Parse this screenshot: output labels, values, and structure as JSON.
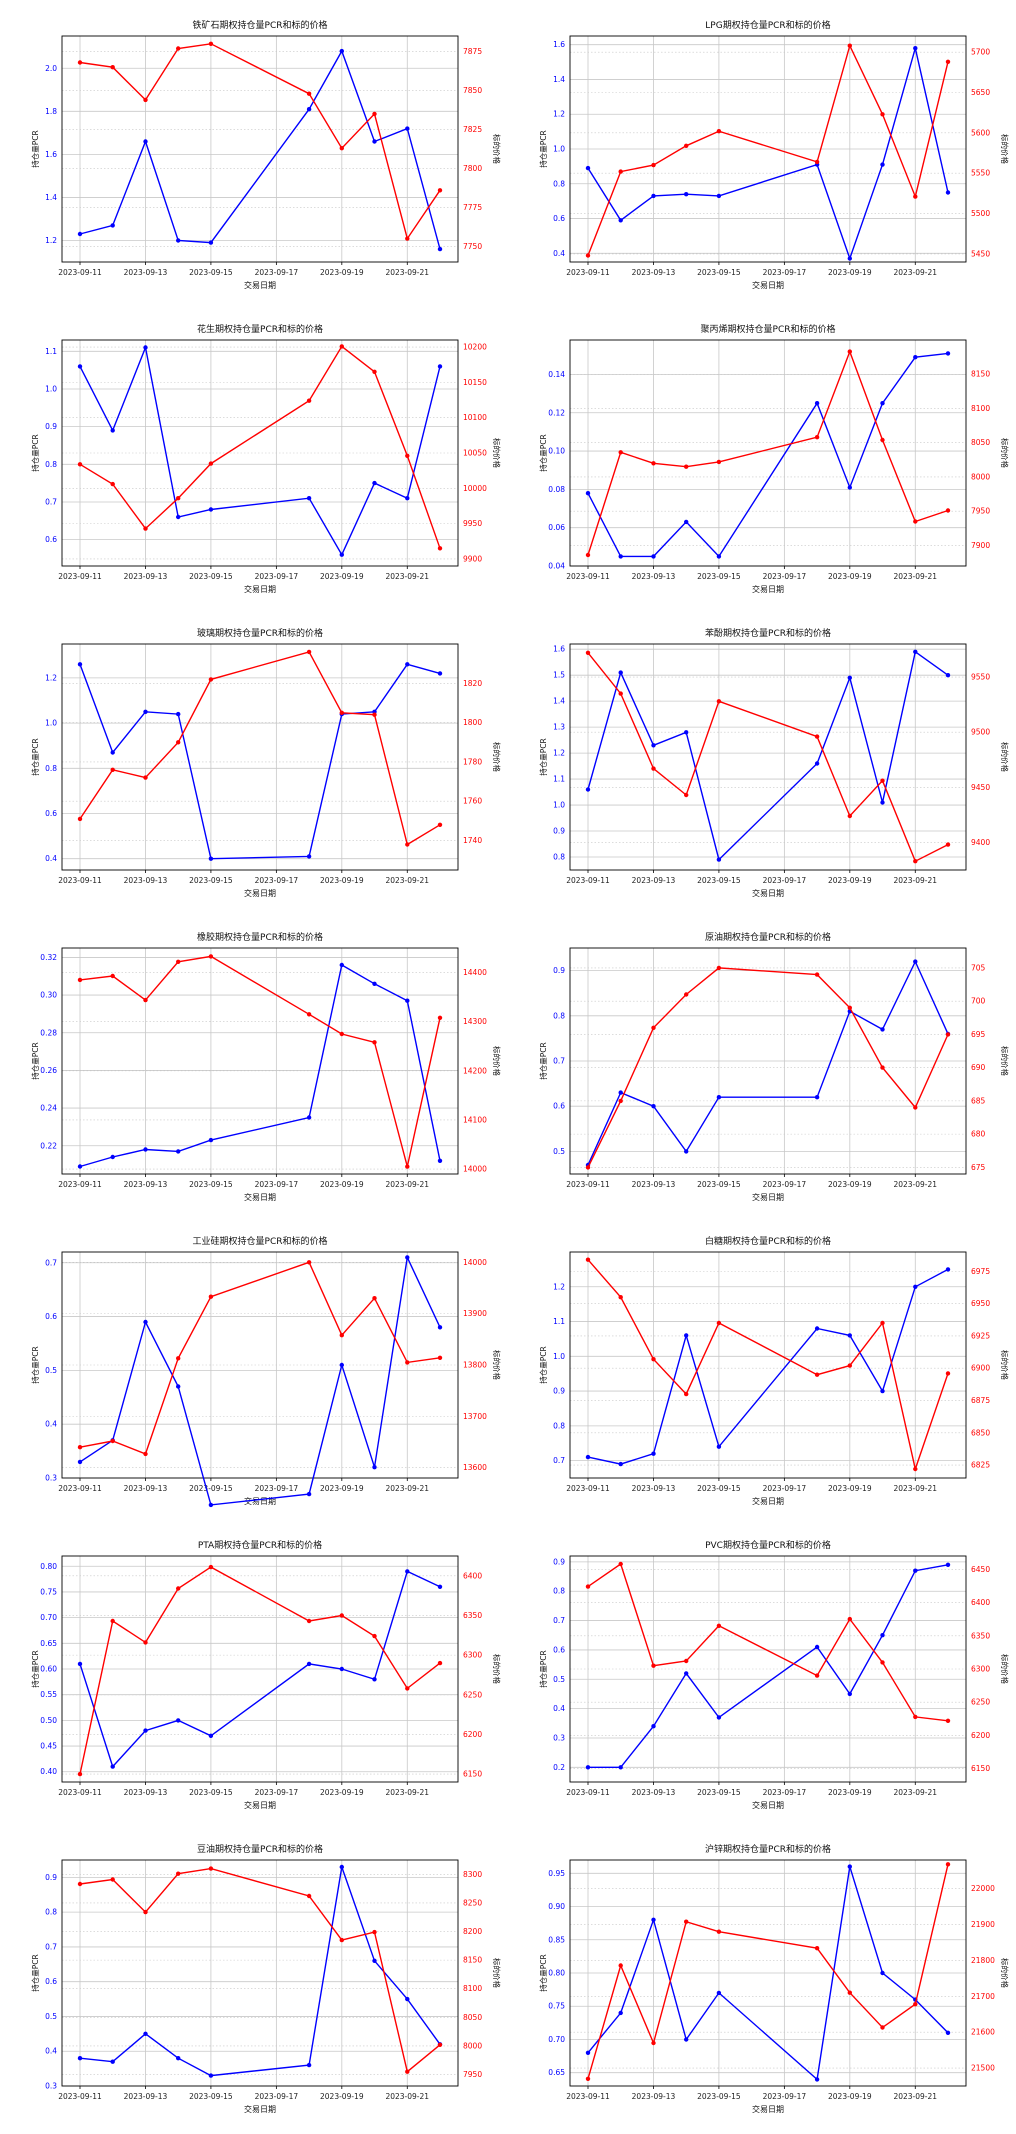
{
  "colors": {
    "pcr": "#0000ff",
    "price": "#ff0000",
    "grid": "#c8c8c8",
    "axis": "#000000"
  },
  "shared": {
    "dates": [
      "2023-09-11",
      "2023-09-12",
      "2023-09-13",
      "2023-09-14",
      "2023-09-15",
      "2023-09-18",
      "2023-09-19",
      "2023-09-20",
      "2023-09-21",
      "2023-09-22"
    ],
    "xticks": [
      "2023-09-11",
      "2023-09-13",
      "2023-09-15",
      "2023-09-17",
      "2023-09-19",
      "2023-09-21"
    ],
    "xlabel": "交易日期"
  },
  "chart_data": [
    {
      "type": "line",
      "title": "铁矿石期权持仓量PCR和标的价格",
      "ylabel": "持仓量PCR",
      "y2label": "标的价格",
      "x": [
        "2023-09-11",
        "2023-09-12",
        "2023-09-13",
        "2023-09-14",
        "2023-09-15",
        "2023-09-18",
        "2023-09-19",
        "2023-09-20",
        "2023-09-21",
        "2023-09-22"
      ],
      "ylim": [
        1.1,
        2.15
      ],
      "yticks": [
        "1.2",
        "1.4",
        "1.6",
        "1.8",
        "2.0"
      ],
      "y2lim": [
        7740,
        7885
      ],
      "y2ticks": [
        "7750",
        "7775",
        "7800",
        "7825",
        "7850",
        "7875"
      ],
      "series": [
        {
          "axis": "left",
          "values": [
            1.23,
            1.27,
            1.66,
            1.2,
            1.19,
            1.81,
            2.08,
            1.66,
            1.72,
            1.16
          ]
        },
        {
          "axis": "right",
          "values": [
            7868,
            7865,
            7844,
            7877,
            7880,
            7848,
            7813,
            7835,
            7755,
            7786
          ]
        }
      ]
    },
    {
      "type": "line",
      "title": "LPG期权持仓量PCR和标的价格",
      "ylabel": "持仓量PCR",
      "y2label": "标的价格",
      "x": [
        "2023-09-11",
        "2023-09-12",
        "2023-09-13",
        "2023-09-14",
        "2023-09-15",
        "2023-09-18",
        "2023-09-19",
        "2023-09-20",
        "2023-09-21",
        "2023-09-22"
      ],
      "ylim": [
        0.35,
        1.65
      ],
      "yticks": [
        "0.4",
        "0.6",
        "0.8",
        "1.0",
        "1.2",
        "1.4",
        "1.6"
      ],
      "y2lim": [
        5440,
        5720
      ],
      "y2ticks": [
        "5450",
        "5500",
        "5550",
        "5600",
        "5650",
        "5700"
      ],
      "series": [
        {
          "axis": "left",
          "values": [
            0.89,
            0.59,
            0.73,
            0.74,
            0.73,
            0.91,
            0.37,
            0.91,
            1.58,
            0.75
          ]
        },
        {
          "axis": "right",
          "values": [
            5448,
            5552,
            5560,
            5584,
            5602,
            5564,
            5708,
            5623,
            5521,
            5688
          ]
        }
      ]
    },
    {
      "type": "line",
      "title": "花生期权持仓量PCR和标的价格",
      "ylabel": "持仓量PCR",
      "y2label": "标的价格",
      "x": [
        "2023-09-11",
        "2023-09-12",
        "2023-09-13",
        "2023-09-14",
        "2023-09-15",
        "2023-09-18",
        "2023-09-19",
        "2023-09-20",
        "2023-09-21",
        "2023-09-22"
      ],
      "ylim": [
        0.53,
        1.13
      ],
      "yticks": [
        "0.6",
        "0.7",
        "0.8",
        "0.9",
        "1.0",
        "1.1"
      ],
      "y2lim": [
        9890,
        10210
      ],
      "y2ticks": [
        "9900",
        "9950",
        "10000",
        "10050",
        "10100",
        "10150",
        "10200"
      ],
      "series": [
        {
          "axis": "left",
          "values": [
            1.06,
            0.89,
            1.11,
            0.66,
            0.68,
            0.71,
            0.56,
            0.75,
            0.71,
            1.06
          ]
        },
        {
          "axis": "right",
          "values": [
            10034,
            10006,
            9943,
            9986,
            10035,
            10124,
            10201,
            10165,
            10046,
            9915
          ]
        }
      ]
    },
    {
      "type": "line",
      "title": "聚丙烯期权持仓量PCR和标的价格",
      "ylabel": "持仓量PCR",
      "y2label": "标的价格",
      "x": [
        "2023-09-11",
        "2023-09-12",
        "2023-09-13",
        "2023-09-14",
        "2023-09-15",
        "2023-09-18",
        "2023-09-19",
        "2023-09-20",
        "2023-09-21",
        "2023-09-22"
      ],
      "ylim": [
        0.04,
        0.158
      ],
      "yticks": [
        "0.04",
        "0.06",
        "0.08",
        "0.10",
        "0.12",
        "0.14"
      ],
      "y2lim": [
        7870,
        8200
      ],
      "y2ticks": [
        "7900",
        "7950",
        "8000",
        "8050",
        "8100",
        "8150"
      ],
      "series": [
        {
          "axis": "left",
          "values": [
            0.078,
            0.045,
            0.045,
            0.063,
            0.045,
            0.125,
            0.081,
            0.125,
            0.149,
            0.151
          ]
        },
        {
          "axis": "right",
          "values": [
            7886,
            8036,
            8020,
            8015,
            8022,
            8058,
            8183,
            8054,
            7935,
            7951
          ]
        }
      ]
    },
    {
      "type": "line",
      "title": "玻璃期权持仓量PCR和标的价格",
      "ylabel": "持仓量PCR",
      "y2label": "标的价格",
      "x": [
        "2023-09-11",
        "2023-09-12",
        "2023-09-13",
        "2023-09-14",
        "2023-09-15",
        "2023-09-18",
        "2023-09-19",
        "2023-09-20",
        "2023-09-21",
        "2023-09-22"
      ],
      "ylim": [
        0.35,
        1.35
      ],
      "yticks": [
        "0.4",
        "0.6",
        "0.8",
        "1.0",
        "1.2"
      ],
      "y2lim": [
        1725,
        1840
      ],
      "y2ticks": [
        "1740",
        "1760",
        "1780",
        "1800",
        "1820"
      ],
      "series": [
        {
          "axis": "left",
          "values": [
            1.26,
            0.87,
            1.05,
            1.04,
            0.4,
            0.41,
            1.04,
            1.05,
            1.26,
            1.22
          ]
        },
        {
          "axis": "right",
          "values": [
            1751,
            1776,
            1772,
            1790,
            1822,
            1836,
            1805,
            1804,
            1738,
            1748
          ]
        }
      ]
    },
    {
      "type": "line",
      "title": "苯酚期权持仓量PCR和标的价格",
      "ylabel": "持仓量PCR",
      "y2label": "标的价格",
      "x": [
        "2023-09-11",
        "2023-09-12",
        "2023-09-13",
        "2023-09-14",
        "2023-09-15",
        "2023-09-18",
        "2023-09-19",
        "2023-09-20",
        "2023-09-21",
        "2023-09-22"
      ],
      "ylim": [
        0.75,
        1.62
      ],
      "yticks": [
        "0.8",
        "0.9",
        "1.0",
        "1.1",
        "1.2",
        "1.3",
        "1.4",
        "1.5",
        "1.6"
      ],
      "y2lim": [
        9375,
        9580
      ],
      "y2ticks": [
        "9400",
        "9450",
        "9500",
        "9550"
      ],
      "series": [
        {
          "axis": "left",
          "values": [
            1.06,
            1.51,
            1.23,
            1.28,
            0.79,
            1.16,
            1.49,
            1.01,
            1.59,
            1.5
          ]
        },
        {
          "axis": "right",
          "values": [
            9572,
            9535,
            9467,
            9443,
            9528,
            9496,
            9424,
            9456,
            9383,
            9398
          ]
        }
      ]
    },
    {
      "type": "line",
      "title": "橡胶期权持仓量PCR和标的价格",
      "ylabel": "持仓量PCR",
      "y2label": "标的价格",
      "x": [
        "2023-09-11",
        "2023-09-12",
        "2023-09-13",
        "2023-09-14",
        "2023-09-15",
        "2023-09-18",
        "2023-09-19",
        "2023-09-20",
        "2023-09-21",
        "2023-09-22"
      ],
      "ylim": [
        0.205,
        0.325
      ],
      "yticks": [
        "0.22",
        "0.24",
        "0.26",
        "0.28",
        "0.30",
        "0.32"
      ],
      "y2lim": [
        13990,
        14450
      ],
      "y2ticks": [
        "14000",
        "14100",
        "14200",
        "14300",
        "14400"
      ],
      "series": [
        {
          "axis": "left",
          "values": [
            0.209,
            0.214,
            0.218,
            0.217,
            0.223,
            0.235,
            0.316,
            0.306,
            0.297,
            0.212
          ]
        },
        {
          "axis": "right",
          "values": [
            14385,
            14393,
            14344,
            14422,
            14433,
            14315,
            14275,
            14258,
            14005,
            14308
          ]
        }
      ]
    },
    {
      "type": "line",
      "title": "原油期权持仓量PCR和标的价格",
      "ylabel": "持仓量PCR",
      "y2label": "标的价格",
      "x": [
        "2023-09-11",
        "2023-09-12",
        "2023-09-13",
        "2023-09-14",
        "2023-09-15",
        "2023-09-18",
        "2023-09-19",
        "2023-09-20",
        "2023-09-21",
        "2023-09-22"
      ],
      "ylim": [
        0.45,
        0.95
      ],
      "yticks": [
        "0.5",
        "0.6",
        "0.7",
        "0.8",
        "0.9"
      ],
      "y2lim": [
        674,
        708
      ],
      "y2ticks": [
        "675",
        "680",
        "685",
        "690",
        "695",
        "700",
        "705"
      ],
      "series": [
        {
          "axis": "left",
          "values": [
            0.47,
            0.63,
            0.6,
            0.5,
            0.62,
            0.62,
            0.81,
            0.77,
            0.92,
            0.76
          ]
        },
        {
          "axis": "right",
          "values": [
            675,
            685,
            696,
            701,
            705,
            704,
            699,
            690,
            684,
            695
          ]
        }
      ]
    },
    {
      "type": "line",
      "title": "工业硅期权持仓量PCR和标的价格",
      "ylabel": "持仓量PCR",
      "y2label": "标的价格",
      "x": [
        "2023-09-11",
        "2023-09-12",
        "2023-09-13",
        "2023-09-14",
        "2023-09-15",
        "2023-09-18",
        "2023-09-19",
        "2023-09-20",
        "2023-09-21",
        "2023-09-22"
      ],
      "ylim": [
        0.3,
        0.72
      ],
      "yticks": [
        "0.3",
        "0.4",
        "0.5",
        "0.6",
        "0.7"
      ],
      "y2lim": [
        13580,
        14020
      ],
      "y2ticks": [
        "13600",
        "13700",
        "13800",
        "13900",
        "14000"
      ],
      "series": [
        {
          "axis": "left",
          "values": [
            0.33,
            0.37,
            0.59,
            0.47,
            0.25,
            0.27,
            0.51,
            0.32,
            0.71,
            0.58
          ]
        },
        {
          "axis": "right",
          "values": [
            13640,
            13652,
            13627,
            13813,
            13933,
            14000,
            13858,
            13930,
            13805,
            13814
          ]
        }
      ]
    },
    {
      "type": "line",
      "title": "白糖期权持仓量PCR和标的价格",
      "ylabel": "持仓量PCR",
      "y2label": "标的价格",
      "x": [
        "2023-09-11",
        "2023-09-12",
        "2023-09-13",
        "2023-09-14",
        "2023-09-15",
        "2023-09-18",
        "2023-09-19",
        "2023-09-20",
        "2023-09-21",
        "2023-09-22"
      ],
      "ylim": [
        0.65,
        1.3
      ],
      "yticks": [
        "0.7",
        "0.8",
        "0.9",
        "1.0",
        "1.1",
        "1.2"
      ],
      "y2lim": [
        6815,
        6990
      ],
      "y2ticks": [
        "6825",
        "6850",
        "6875",
        "6900",
        "6925",
        "6950",
        "6975"
      ],
      "series": [
        {
          "axis": "left",
          "values": [
            0.71,
            0.69,
            0.72,
            1.06,
            0.74,
            1.08,
            1.06,
            0.9,
            1.2,
            1.25
          ]
        },
        {
          "axis": "right",
          "values": [
            6984,
            6955,
            6907,
            6880,
            6935,
            6895,
            6902,
            6935,
            6822,
            6896
          ]
        }
      ]
    },
    {
      "type": "line",
      "title": "PTA期权持仓量PCR和标的价格",
      "ylabel": "持仓量PCR",
      "y2label": "标的价格",
      "x": [
        "2023-09-11",
        "2023-09-12",
        "2023-09-13",
        "2023-09-14",
        "2023-09-15",
        "2023-09-18",
        "2023-09-19",
        "2023-09-20",
        "2023-09-21",
        "2023-09-22"
      ],
      "ylim": [
        0.38,
        0.82
      ],
      "yticks": [
        "0.40",
        "0.45",
        "0.50",
        "0.55",
        "0.60",
        "0.65",
        "0.70",
        "0.75",
        "0.80"
      ],
      "y2lim": [
        6140,
        6425
      ],
      "y2ticks": [
        "6150",
        "6200",
        "6250",
        "6300",
        "6350",
        "6400"
      ],
      "series": [
        {
          "axis": "left",
          "values": [
            0.61,
            0.41,
            0.48,
            0.5,
            0.47,
            0.61,
            0.6,
            0.58,
            0.79,
            0.76
          ]
        },
        {
          "axis": "right",
          "values": [
            6150,
            6343,
            6316,
            6384,
            6411,
            6343,
            6350,
            6324,
            6258,
            6290
          ]
        }
      ]
    },
    {
      "type": "line",
      "title": "PVC期权持仓量PCR和标的价格",
      "ylabel": "持仓量PCR",
      "y2label": "标的价格",
      "x": [
        "2023-09-11",
        "2023-09-12",
        "2023-09-13",
        "2023-09-14",
        "2023-09-15",
        "2023-09-18",
        "2023-09-19",
        "2023-09-20",
        "2023-09-21",
        "2023-09-22"
      ],
      "ylim": [
        0.15,
        0.92
      ],
      "yticks": [
        "0.2",
        "0.3",
        "0.4",
        "0.5",
        "0.6",
        "0.7",
        "0.8",
        "0.9"
      ],
      "y2lim": [
        6130,
        6470
      ],
      "y2ticks": [
        "6150",
        "6200",
        "6250",
        "6300",
        "6350",
        "6400",
        "6450"
      ],
      "series": [
        {
          "axis": "left",
          "values": [
            0.2,
            0.2,
            0.34,
            0.52,
            0.37,
            0.61,
            0.45,
            0.65,
            0.87,
            0.89
          ]
        },
        {
          "axis": "right",
          "values": [
            6424,
            6458,
            6305,
            6312,
            6365,
            6290,
            6375,
            6310,
            6228,
            6222
          ]
        }
      ]
    },
    {
      "type": "line",
      "title": "豆油期权持仓量PCR和标的价格",
      "ylabel": "持仓量PCR",
      "y2label": "标的价格",
      "x": [
        "2023-09-11",
        "2023-09-12",
        "2023-09-13",
        "2023-09-14",
        "2023-09-15",
        "2023-09-18",
        "2023-09-19",
        "2023-09-20",
        "2023-09-21",
        "2023-09-22"
      ],
      "ylim": [
        0.3,
        0.95
      ],
      "yticks": [
        "0.3",
        "0.4",
        "0.5",
        "0.6",
        "0.7",
        "0.8",
        "0.9"
      ],
      "y2lim": [
        7930,
        8325
      ],
      "y2ticks": [
        "7950",
        "8000",
        "8050",
        "8100",
        "8150",
        "8200",
        "8250",
        "8300"
      ],
      "series": [
        {
          "axis": "left",
          "values": [
            0.38,
            0.37,
            0.45,
            0.38,
            0.33,
            0.36,
            0.93,
            0.66,
            0.55,
            0.42
          ]
        },
        {
          "axis": "right",
          "values": [
            8283,
            8291,
            8234,
            8301,
            8310,
            8262,
            8185,
            8199,
            7955,
            8002
          ]
        }
      ]
    },
    {
      "type": "line",
      "title": "沪锌期权持仓量PCR和标的价格",
      "ylabel": "持仓量PCR",
      "y2label": "标的价格",
      "x": [
        "2023-09-11",
        "2023-09-12",
        "2023-09-13",
        "2023-09-14",
        "2023-09-15",
        "2023-09-18",
        "2023-09-19",
        "2023-09-20",
        "2023-09-21",
        "2023-09-22"
      ],
      "ylim": [
        0.63,
        0.97
      ],
      "yticks": [
        "0.65",
        "0.70",
        "0.75",
        "0.80",
        "0.85",
        "0.90",
        "0.95"
      ],
      "y2lim": [
        21450,
        22080
      ],
      "y2ticks": [
        "21500",
        "21600",
        "21700",
        "21800",
        "21900",
        "22000"
      ],
      "series": [
        {
          "axis": "left",
          "values": [
            0.68,
            0.74,
            0.88,
            0.7,
            0.77,
            0.64,
            0.96,
            0.8,
            0.76,
            0.71
          ]
        },
        {
          "axis": "right",
          "values": [
            21470,
            21786,
            21570,
            21908,
            21880,
            21834,
            21710,
            21613,
            21678,
            22068
          ]
        }
      ]
    }
  ]
}
